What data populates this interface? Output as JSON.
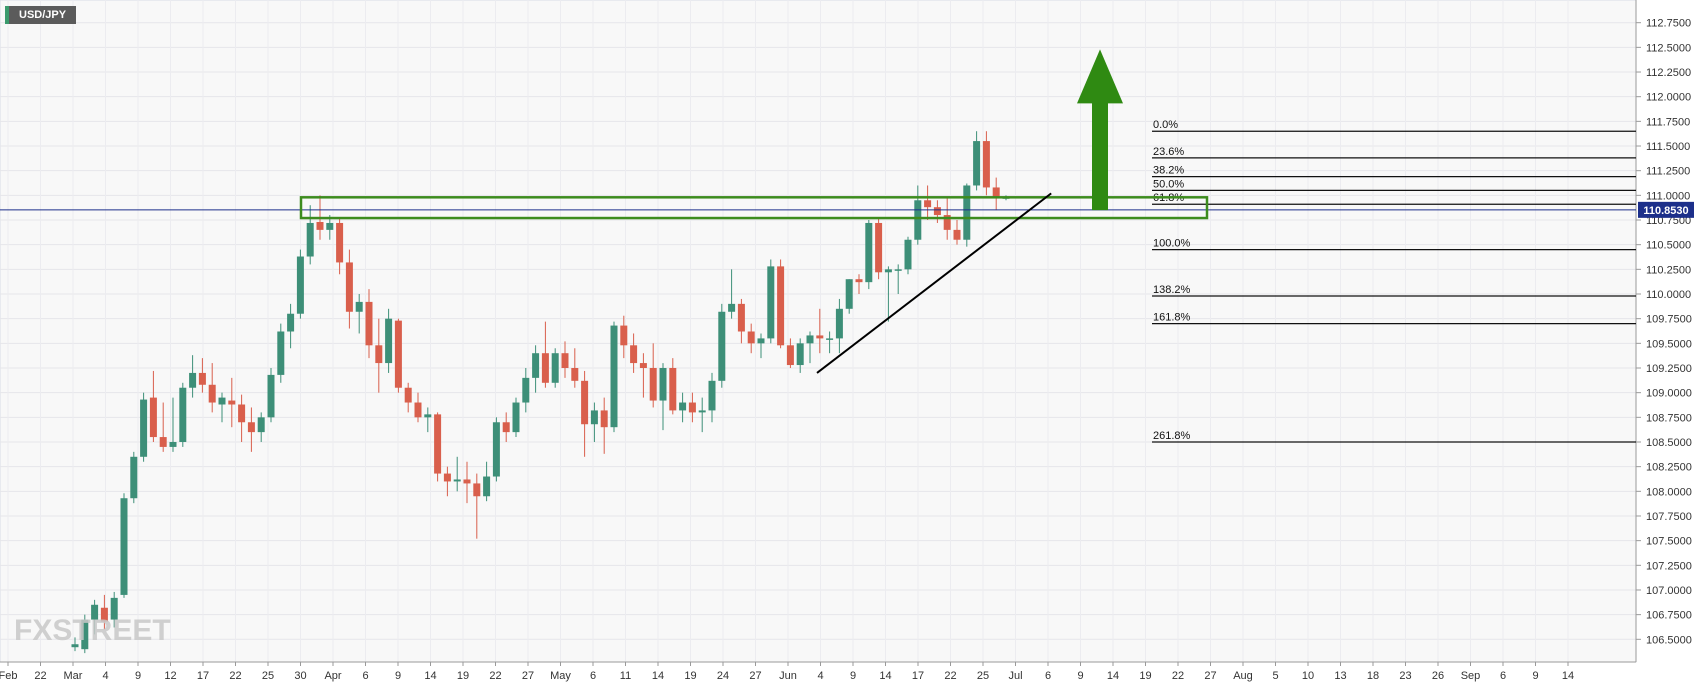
{
  "symbol": "USD/JPY",
  "current_price_label": "110.8530",
  "watermark": "FXSTREET",
  "colors": {
    "bull": "#3d8f78",
    "bear": "#d95f4c",
    "zone": "#3d8c1e",
    "arrow": "#2f8a12",
    "price_line": "#1c2f8a",
    "price_badge": "#1c2f8a"
  },
  "chart_data": {
    "type": "candlestick",
    "title": "",
    "ylim": [
      106.27,
      112.98
    ],
    "y_ticks": [
      "112.7500",
      "112.5000",
      "112.2500",
      "112.0000",
      "111.7500",
      "111.5000",
      "111.2500",
      "111.0000",
      "110.7500",
      "110.5000",
      "110.2500",
      "110.0000",
      "109.7500",
      "109.5000",
      "109.2500",
      "109.0000",
      "108.7500",
      "108.5000",
      "108.2500",
      "108.0000",
      "107.7500",
      "107.5000",
      "107.2500",
      "107.0000",
      "106.7500",
      "106.5000"
    ],
    "x_ticks": [
      "Feb",
      "22",
      "Mar",
      "4",
      "9",
      "12",
      "17",
      "22",
      "25",
      "30",
      "Apr",
      "6",
      "9",
      "14",
      "19",
      "22",
      "27",
      "May",
      "6",
      "11",
      "14",
      "19",
      "24",
      "27",
      "Jun",
      "4",
      "9",
      "14",
      "17",
      "22",
      "25",
      "Jul",
      "6",
      "9",
      "14",
      "19",
      "22",
      "27",
      "Aug",
      "5",
      "10",
      "13",
      "18",
      "23",
      "26",
      "Sep",
      "6",
      "9",
      "14"
    ],
    "candles": [
      {
        "o": 106.42,
        "h": 106.52,
        "l": 106.38,
        "c": 106.45
      },
      {
        "o": 106.4,
        "h": 106.75,
        "l": 106.36,
        "c": 106.7
      },
      {
        "o": 106.7,
        "h": 106.9,
        "l": 106.55,
        "c": 106.85
      },
      {
        "o": 106.82,
        "h": 106.95,
        "l": 106.6,
        "c": 106.68
      },
      {
        "o": 106.7,
        "h": 106.98,
        "l": 106.62,
        "c": 106.92
      },
      {
        "o": 106.95,
        "h": 107.98,
        "l": 106.92,
        "c": 107.93
      },
      {
        "o": 107.93,
        "h": 108.4,
        "l": 107.88,
        "c": 108.35
      },
      {
        "o": 108.35,
        "h": 109.0,
        "l": 108.3,
        "c": 108.93
      },
      {
        "o": 108.95,
        "h": 109.22,
        "l": 108.5,
        "c": 108.55
      },
      {
        "o": 108.55,
        "h": 108.9,
        "l": 108.4,
        "c": 108.45
      },
      {
        "o": 108.45,
        "h": 108.95,
        "l": 108.4,
        "c": 108.5
      },
      {
        "o": 108.5,
        "h": 109.1,
        "l": 108.45,
        "c": 109.05
      },
      {
        "o": 109.05,
        "h": 109.38,
        "l": 108.95,
        "c": 109.2
      },
      {
        "o": 109.2,
        "h": 109.35,
        "l": 109.0,
        "c": 109.08
      },
      {
        "o": 109.08,
        "h": 109.3,
        "l": 108.8,
        "c": 108.9
      },
      {
        "o": 108.88,
        "h": 109.0,
        "l": 108.7,
        "c": 108.95
      },
      {
        "o": 108.92,
        "h": 109.15,
        "l": 108.65,
        "c": 108.88
      },
      {
        "o": 108.88,
        "h": 108.98,
        "l": 108.5,
        "c": 108.7
      },
      {
        "o": 108.7,
        "h": 108.85,
        "l": 108.4,
        "c": 108.6
      },
      {
        "o": 108.6,
        "h": 108.8,
        "l": 108.5,
        "c": 108.75
      },
      {
        "o": 108.75,
        "h": 109.25,
        "l": 108.7,
        "c": 109.18
      },
      {
        "o": 109.18,
        "h": 109.7,
        "l": 109.1,
        "c": 109.62
      },
      {
        "o": 109.62,
        "h": 109.9,
        "l": 109.45,
        "c": 109.8
      },
      {
        "o": 109.8,
        "h": 110.45,
        "l": 109.75,
        "c": 110.38
      },
      {
        "o": 110.38,
        "h": 110.9,
        "l": 110.3,
        "c": 110.72
      },
      {
        "o": 110.73,
        "h": 111.0,
        "l": 110.55,
        "c": 110.65
      },
      {
        "o": 110.65,
        "h": 110.8,
        "l": 110.55,
        "c": 110.72
      },
      {
        "o": 110.72,
        "h": 110.78,
        "l": 110.2,
        "c": 110.32
      },
      {
        "o": 110.32,
        "h": 110.45,
        "l": 109.65,
        "c": 109.82
      },
      {
        "o": 109.82,
        "h": 110.0,
        "l": 109.6,
        "c": 109.92
      },
      {
        "o": 109.92,
        "h": 110.05,
        "l": 109.35,
        "c": 109.48
      },
      {
        "o": 109.48,
        "h": 109.75,
        "l": 109.0,
        "c": 109.3
      },
      {
        "o": 109.3,
        "h": 109.85,
        "l": 109.2,
        "c": 109.75
      },
      {
        "o": 109.73,
        "h": 109.75,
        "l": 109.0,
        "c": 109.05
      },
      {
        "o": 109.05,
        "h": 109.1,
        "l": 108.8,
        "c": 108.9
      },
      {
        "o": 108.9,
        "h": 109.0,
        "l": 108.7,
        "c": 108.75
      },
      {
        "o": 108.75,
        "h": 108.85,
        "l": 108.6,
        "c": 108.78
      },
      {
        "o": 108.78,
        "h": 108.8,
        "l": 108.1,
        "c": 108.18
      },
      {
        "o": 108.18,
        "h": 108.25,
        "l": 107.95,
        "c": 108.1
      },
      {
        "o": 108.1,
        "h": 108.35,
        "l": 108.0,
        "c": 108.12
      },
      {
        "o": 108.12,
        "h": 108.3,
        "l": 107.88,
        "c": 108.08
      },
      {
        "o": 108.08,
        "h": 108.18,
        "l": 107.52,
        "c": 107.95
      },
      {
        "o": 107.95,
        "h": 108.3,
        "l": 107.9,
        "c": 108.15
      },
      {
        "o": 108.15,
        "h": 108.75,
        "l": 108.1,
        "c": 108.7
      },
      {
        "o": 108.7,
        "h": 108.8,
        "l": 108.5,
        "c": 108.6
      },
      {
        "o": 108.6,
        "h": 108.95,
        "l": 108.55,
        "c": 108.9
      },
      {
        "o": 108.9,
        "h": 109.25,
        "l": 108.8,
        "c": 109.15
      },
      {
        "o": 109.15,
        "h": 109.48,
        "l": 109.0,
        "c": 109.4
      },
      {
        "o": 109.4,
        "h": 109.72,
        "l": 109.05,
        "c": 109.1
      },
      {
        "o": 109.1,
        "h": 109.45,
        "l": 109.05,
        "c": 109.4
      },
      {
        "o": 109.4,
        "h": 109.52,
        "l": 109.15,
        "c": 109.25
      },
      {
        "o": 109.25,
        "h": 109.45,
        "l": 109.05,
        "c": 109.12
      },
      {
        "o": 109.12,
        "h": 109.22,
        "l": 108.35,
        "c": 108.68
      },
      {
        "o": 108.68,
        "h": 108.9,
        "l": 108.5,
        "c": 108.82
      },
      {
        "o": 108.82,
        "h": 108.95,
        "l": 108.38,
        "c": 108.65
      },
      {
        "o": 108.65,
        "h": 109.72,
        "l": 108.6,
        "c": 109.68
      },
      {
        "o": 109.68,
        "h": 109.78,
        "l": 109.35,
        "c": 109.48
      },
      {
        "o": 109.48,
        "h": 109.6,
        "l": 109.2,
        "c": 109.3
      },
      {
        "o": 109.3,
        "h": 109.4,
        "l": 108.95,
        "c": 109.25
      },
      {
        "o": 109.25,
        "h": 109.5,
        "l": 108.85,
        "c": 108.92
      },
      {
        "o": 108.92,
        "h": 109.3,
        "l": 108.62,
        "c": 109.25
      },
      {
        "o": 109.25,
        "h": 109.35,
        "l": 108.78,
        "c": 108.82
      },
      {
        "o": 108.82,
        "h": 109.0,
        "l": 108.7,
        "c": 108.9
      },
      {
        "o": 108.9,
        "h": 109.0,
        "l": 108.7,
        "c": 108.8
      },
      {
        "o": 108.8,
        "h": 108.95,
        "l": 108.6,
        "c": 108.82
      },
      {
        "o": 108.82,
        "h": 109.2,
        "l": 108.7,
        "c": 109.12
      },
      {
        "o": 109.12,
        "h": 109.9,
        "l": 109.05,
        "c": 109.82
      },
      {
        "o": 109.82,
        "h": 110.25,
        "l": 109.75,
        "c": 109.9
      },
      {
        "o": 109.9,
        "h": 109.95,
        "l": 109.5,
        "c": 109.62
      },
      {
        "o": 109.62,
        "h": 109.7,
        "l": 109.4,
        "c": 109.5
      },
      {
        "o": 109.5,
        "h": 109.6,
        "l": 109.35,
        "c": 109.55
      },
      {
        "o": 109.55,
        "h": 110.35,
        "l": 109.5,
        "c": 110.28
      },
      {
        "o": 110.28,
        "h": 110.35,
        "l": 109.45,
        "c": 109.48
      },
      {
        "o": 109.48,
        "h": 109.55,
        "l": 109.25,
        "c": 109.28
      },
      {
        "o": 109.28,
        "h": 109.55,
        "l": 109.2,
        "c": 109.5
      },
      {
        "o": 109.5,
        "h": 109.62,
        "l": 109.3,
        "c": 109.58
      },
      {
        "o": 109.58,
        "h": 109.85,
        "l": 109.4,
        "c": 109.55
      },
      {
        "o": 109.55,
        "h": 109.62,
        "l": 109.4,
        "c": 109.55
      },
      {
        "o": 109.55,
        "h": 109.95,
        "l": 109.4,
        "c": 109.85
      },
      {
        "o": 109.85,
        "h": 110.15,
        "l": 109.8,
        "c": 110.15
      },
      {
        "o": 110.15,
        "h": 110.2,
        "l": 110.0,
        "c": 110.12
      },
      {
        "o": 110.12,
        "h": 110.75,
        "l": 110.05,
        "c": 110.72
      },
      {
        "o": 110.72,
        "h": 110.78,
        "l": 110.15,
        "c": 110.22
      },
      {
        "o": 110.22,
        "h": 110.28,
        "l": 109.72,
        "c": 110.25
      },
      {
        "o": 110.25,
        "h": 110.3,
        "l": 110.0,
        "c": 110.25
      },
      {
        "o": 110.25,
        "h": 110.58,
        "l": 110.2,
        "c": 110.55
      },
      {
        "o": 110.55,
        "h": 111.1,
        "l": 110.5,
        "c": 110.95
      },
      {
        "o": 110.95,
        "h": 111.1,
        "l": 110.75,
        "c": 110.88
      },
      {
        "o": 110.88,
        "h": 110.95,
        "l": 110.72,
        "c": 110.8
      },
      {
        "o": 110.8,
        "h": 110.98,
        "l": 110.55,
        "c": 110.65
      },
      {
        "o": 110.65,
        "h": 110.75,
        "l": 110.5,
        "c": 110.55
      },
      {
        "o": 110.55,
        "h": 111.12,
        "l": 110.48,
        "c": 111.1
      },
      {
        "o": 111.1,
        "h": 111.65,
        "l": 111.05,
        "c": 111.55
      },
      {
        "o": 111.55,
        "h": 111.65,
        "l": 111.0,
        "c": 111.08
      },
      {
        "o": 111.08,
        "h": 111.18,
        "l": 110.85,
        "c": 110.98
      },
      {
        "o": 110.98,
        "h": 111.0,
        "l": 110.95,
        "c": 110.98
      }
    ],
    "current_price": 110.853,
    "fibonacci_levels": [
      {
        "label": "0.0%",
        "value": 111.65
      },
      {
        "label": "23.6%",
        "value": 111.38
      },
      {
        "label": "38.2%",
        "value": 111.19
      },
      {
        "label": "50.0%",
        "value": 111.05
      },
      {
        "label": "61.8%",
        "value": 110.91
      },
      {
        "label": "100.0%",
        "value": 110.45
      },
      {
        "label": "138.2%",
        "value": 109.98
      },
      {
        "label": "161.8%",
        "value": 109.7
      },
      {
        "label": "261.8%",
        "value": 108.5
      }
    ],
    "resistance_zone": [
      110.77,
      110.98
    ],
    "trendline": [
      {
        "candle": 75,
        "price": 109.2
      },
      {
        "candle": 99,
        "price": 111.02
      }
    ],
    "projection_arrow": {
      "from": 110.85,
      "to": 112.48
    }
  }
}
